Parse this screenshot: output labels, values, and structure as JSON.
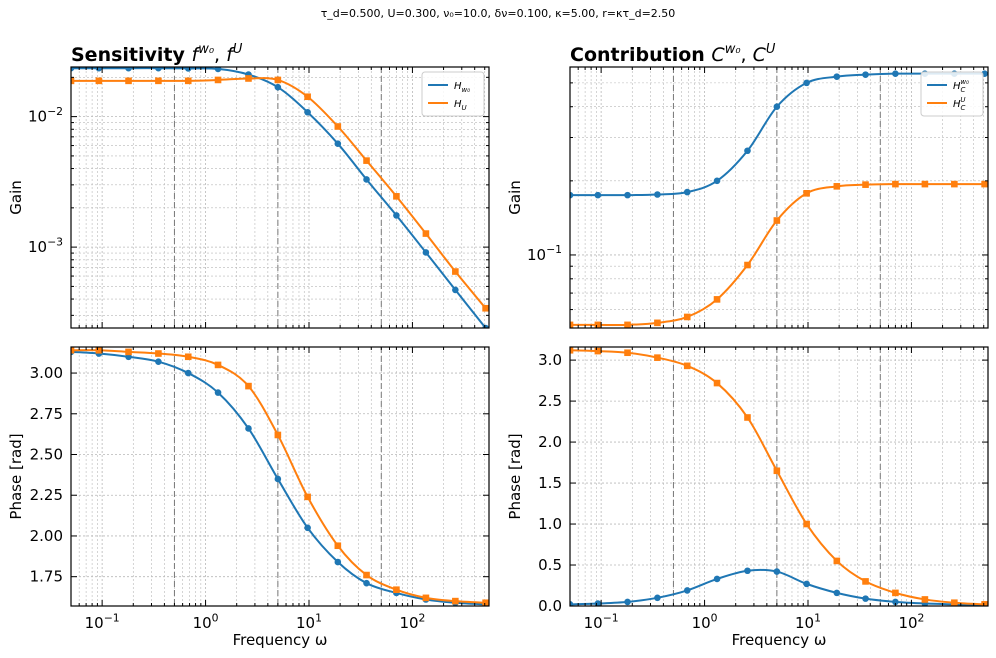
{
  "suptitle": "τ_d=0.500, U=0.300, ν₀=10.0, δν=0.100, κ=5.00, r=κτ_d=2.50",
  "chart_data": [
    {
      "type": "line",
      "title": "Sensitivity f^{w₀}, f^U",
      "title_bold": "Sensitivity",
      "title_math": "f^{w0}, f^{U}",
      "xlabel": "",
      "ylabel": "Gain",
      "xscale": "log",
      "yscale": "log",
      "xlim": [
        0.05,
        550
      ],
      "ylim": [
        0.00024,
        0.024
      ],
      "x_ticks": [
        {
          "v": 0.1,
          "label": "10^{-1}"
        },
        {
          "v": 1,
          "label": "10^{0}"
        },
        {
          "v": 10,
          "label": "10^{1}"
        },
        {
          "v": 100,
          "label": "10^{2}"
        }
      ],
      "y_ticks": [
        {
          "v": 0.001,
          "label": "10^{-3}"
        },
        {
          "v": 0.01,
          "label": "10^{-2}"
        }
      ],
      "vlines": [
        0.5,
        5,
        50
      ],
      "legend": "top-right",
      "series": [
        {
          "name": "H_{w0}",
          "color": "#1f77b4",
          "marker": "circle",
          "x": [
            0.05,
            0.093,
            0.18,
            0.35,
            0.68,
            1.32,
            2.6,
            5,
            9.7,
            19,
            36,
            70,
            135,
            260,
            510
          ],
          "y": [
            0.0235,
            0.0235,
            0.0235,
            0.0235,
            0.0234,
            0.0232,
            0.021,
            0.0168,
            0.0108,
            0.0062,
            0.0033,
            0.00175,
            0.00091,
            0.00047,
            0.00024
          ]
        },
        {
          "name": "H_{U}",
          "color": "#ff7f0e",
          "marker": "square",
          "x": [
            0.05,
            0.093,
            0.18,
            0.35,
            0.68,
            1.32,
            2.6,
            5,
            9.7,
            19,
            36,
            70,
            135,
            260,
            510
          ],
          "y": [
            0.0188,
            0.0188,
            0.0188,
            0.0188,
            0.0188,
            0.0191,
            0.0196,
            0.0191,
            0.0142,
            0.0084,
            0.0046,
            0.00245,
            0.00127,
            0.00065,
            0.00034
          ]
        }
      ]
    },
    {
      "type": "line",
      "title": "Contribution C^{w₀}, C^U",
      "title_bold": "Contribution",
      "title_math": "C^{w0}, C^{U}",
      "xlabel": "",
      "ylabel": "Gain",
      "xscale": "log",
      "yscale": "log",
      "xlim": [
        0.05,
        550
      ],
      "ylim": [
        0.0505,
        0.58
      ],
      "x_ticks": [
        {
          "v": 0.1,
          "label": "10^{-1}"
        },
        {
          "v": 1,
          "label": "10^{0}"
        },
        {
          "v": 10,
          "label": "10^{1}"
        },
        {
          "v": 100,
          "label": "10^{2}"
        }
      ],
      "y_ticks": [
        {
          "v": 0.1,
          "label": "10^{-1}"
        }
      ],
      "vlines": [
        0.5,
        5,
        50
      ],
      "legend": "top-right",
      "series": [
        {
          "name": "H_C^{w0}",
          "color": "#1f77b4",
          "marker": "circle",
          "x": [
            0.05,
            0.093,
            0.18,
            0.35,
            0.68,
            1.32,
            2.6,
            5,
            9.7,
            19,
            36,
            70,
            135,
            260,
            510
          ],
          "y": [
            0.175,
            0.175,
            0.175,
            0.176,
            0.18,
            0.2,
            0.265,
            0.4,
            0.5,
            0.53,
            0.54,
            0.545,
            0.545,
            0.545,
            0.545
          ]
        },
        {
          "name": "H_C^{U}",
          "color": "#ff7f0e",
          "marker": "square",
          "x": [
            0.05,
            0.093,
            0.18,
            0.35,
            0.68,
            1.32,
            2.6,
            5,
            9.7,
            19,
            36,
            70,
            135,
            260,
            510
          ],
          "y": [
            0.052,
            0.052,
            0.052,
            0.053,
            0.056,
            0.066,
            0.091,
            0.138,
            0.178,
            0.19,
            0.193,
            0.194,
            0.194,
            0.194,
            0.194
          ]
        }
      ]
    },
    {
      "type": "line",
      "title": "",
      "xlabel": "Frequency ω",
      "ylabel": "Phase [rad]",
      "xscale": "log",
      "yscale": "linear",
      "xlim": [
        0.05,
        550
      ],
      "ylim": [
        1.57,
        3.16
      ],
      "x_ticks": [
        {
          "v": 0.1,
          "label": "10^{-1}"
        },
        {
          "v": 1,
          "label": "10^{0}"
        },
        {
          "v": 10,
          "label": "10^{1}"
        },
        {
          "v": 100,
          "label": "10^{2}"
        }
      ],
      "y_ticks": [
        {
          "v": 1.75,
          "label": "1.75"
        },
        {
          "v": 2.0,
          "label": "2.00"
        },
        {
          "v": 2.25,
          "label": "2.25"
        },
        {
          "v": 2.5,
          "label": "2.50"
        },
        {
          "v": 2.75,
          "label": "2.75"
        },
        {
          "v": 3.0,
          "label": "3.00"
        }
      ],
      "vlines": [
        0.5,
        5,
        50
      ],
      "series": [
        {
          "name": "",
          "color": "#1f77b4",
          "marker": "circle",
          "x": [
            0.05,
            0.093,
            0.18,
            0.35,
            0.68,
            1.32,
            2.6,
            5,
            9.7,
            19,
            36,
            70,
            135,
            260,
            510
          ],
          "y": [
            3.13,
            3.12,
            3.1,
            3.07,
            3.0,
            2.88,
            2.66,
            2.35,
            2.05,
            1.84,
            1.71,
            1.65,
            1.61,
            1.59,
            1.58
          ]
        },
        {
          "name": "",
          "color": "#ff7f0e",
          "marker": "square",
          "x": [
            0.05,
            0.093,
            0.18,
            0.35,
            0.68,
            1.32,
            2.6,
            5,
            9.7,
            19,
            36,
            70,
            135,
            260,
            510
          ],
          "y": [
            3.14,
            3.14,
            3.13,
            3.12,
            3.1,
            3.05,
            2.92,
            2.62,
            2.24,
            1.94,
            1.76,
            1.67,
            1.62,
            1.6,
            1.59
          ]
        }
      ]
    },
    {
      "type": "line",
      "title": "",
      "xlabel": "Frequency ω",
      "ylabel": "Phase [rad]",
      "xscale": "log",
      "yscale": "linear",
      "xlim": [
        0.05,
        550
      ],
      "ylim": [
        0.0,
        3.16
      ],
      "x_ticks": [
        {
          "v": 0.1,
          "label": "10^{-1}"
        },
        {
          "v": 1,
          "label": "10^{0}"
        },
        {
          "v": 10,
          "label": "10^{1}"
        },
        {
          "v": 100,
          "label": "10^{2}"
        }
      ],
      "y_ticks": [
        {
          "v": 0.0,
          "label": "0.0"
        },
        {
          "v": 0.5,
          "label": "0.5"
        },
        {
          "v": 1.0,
          "label": "1.0"
        },
        {
          "v": 1.5,
          "label": "1.5"
        },
        {
          "v": 2.0,
          "label": "2.0"
        },
        {
          "v": 2.5,
          "label": "2.5"
        },
        {
          "v": 3.0,
          "label": "3.0"
        }
      ],
      "vlines": [
        0.5,
        5,
        50
      ],
      "series": [
        {
          "name": "",
          "color": "#1f77b4",
          "marker": "circle",
          "x": [
            0.05,
            0.093,
            0.18,
            0.35,
            0.68,
            1.32,
            2.6,
            5,
            9.7,
            19,
            36,
            70,
            135,
            260,
            510
          ],
          "y": [
            0.02,
            0.03,
            0.05,
            0.1,
            0.19,
            0.33,
            0.43,
            0.42,
            0.27,
            0.16,
            0.09,
            0.05,
            0.03,
            0.02,
            0.01
          ]
        },
        {
          "name": "",
          "color": "#ff7f0e",
          "marker": "square",
          "x": [
            0.05,
            0.093,
            0.18,
            0.35,
            0.68,
            1.32,
            2.6,
            5,
            9.7,
            19,
            36,
            70,
            135,
            260,
            510
          ],
          "y": [
            3.12,
            3.11,
            3.09,
            3.03,
            2.93,
            2.72,
            2.3,
            1.65,
            1.0,
            0.55,
            0.3,
            0.16,
            0.08,
            0.04,
            0.02
          ]
        }
      ]
    }
  ]
}
